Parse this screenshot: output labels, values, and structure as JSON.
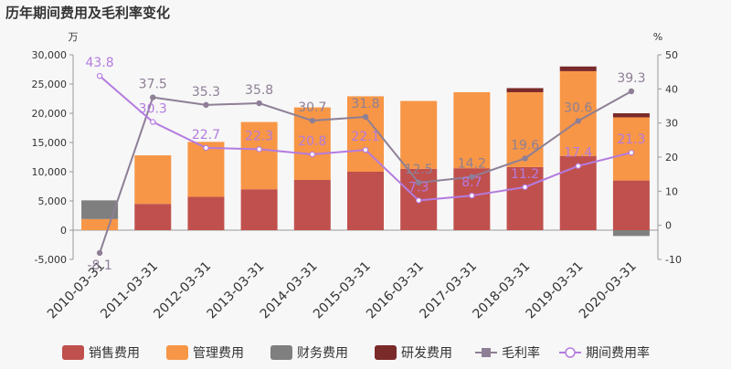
{
  "chart_data": {
    "type": "bar",
    "title": "历年期间费用及毛利率变化",
    "left_unit": "万",
    "right_unit": "%",
    "categories": [
      "2010-03-31",
      "2011-03-31",
      "2012-03-31",
      "2013-03-31",
      "2014-03-31",
      "2015-03-31",
      "2016-03-31",
      "2017-03-31",
      "2018-03-31",
      "2019-03-31",
      "2020-03-31"
    ],
    "left_axis": {
      "min": -5000,
      "max": 30000,
      "ticks": [
        -5000,
        0,
        5000,
        10000,
        15000,
        20000,
        25000,
        30000
      ],
      "tick_labels": [
        "-5,000",
        "0",
        "5,000",
        "10,000",
        "15,000",
        "20,000",
        "25,000",
        "30,000"
      ]
    },
    "right_axis": {
      "min": -10,
      "max": 50,
      "ticks": [
        -10,
        0,
        10,
        20,
        30,
        40,
        50
      ],
      "tick_labels": [
        "-10",
        "0",
        "10",
        "20",
        "30",
        "40",
        "50"
      ]
    },
    "series": [
      {
        "name": "销售费用",
        "kind": "bar",
        "color": "#c0504d",
        "values": [
          0,
          4500,
          5700,
          7000,
          8600,
          10000,
          10500,
          10600,
          10800,
          12700,
          8500
        ]
      },
      {
        "name": "管理费用",
        "kind": "bar",
        "color": "#f79646",
        "values": [
          1900,
          8300,
          9400,
          11500,
          12400,
          12900,
          11600,
          13000,
          12800,
          14500,
          10800
        ]
      },
      {
        "name": "财务费用",
        "kind": "bar",
        "color": "#7f7f7f",
        "values": [
          3200,
          0,
          0,
          0,
          0,
          0,
          0,
          0,
          0,
          0,
          -1000
        ]
      },
      {
        "name": "研发费用",
        "kind": "bar",
        "color": "#7b2a2a",
        "values": [
          0,
          0,
          0,
          0,
          0,
          0,
          0,
          0,
          700,
          800,
          700
        ]
      },
      {
        "name": "毛利率",
        "kind": "line",
        "color": "#8e7f96",
        "values": [
          -8.1,
          37.5,
          35.3,
          35.8,
          30.7,
          31.8,
          12.5,
          14.2,
          19.6,
          30.6,
          39.3
        ],
        "labels": [
          "-8.1",
          "37.5",
          "35.3",
          "35.8",
          "30.7",
          "31.8",
          "12.5",
          "14.2",
          "19.6",
          "30.6",
          "39.3"
        ]
      },
      {
        "name": "期间费用率",
        "kind": "line",
        "color": "#b47be0",
        "values": [
          43.8,
          30.3,
          22.7,
          22.3,
          20.8,
          22.1,
          7.3,
          8.7,
          11.2,
          17.4,
          21.3
        ],
        "labels": [
          "43.8",
          "30.3",
          "22.7",
          "22.3",
          "20.8",
          "22.1",
          "7.3",
          "8.7",
          "11.2",
          "17.4",
          "21.3"
        ]
      }
    ],
    "legend_position": "bottom",
    "grid": false
  }
}
